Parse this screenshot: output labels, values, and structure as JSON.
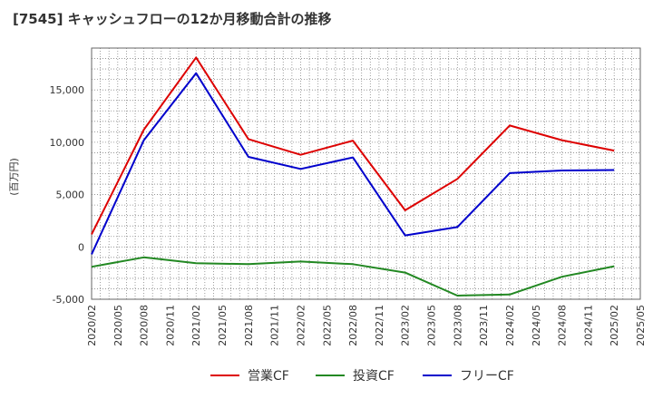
{
  "chart_data": {
    "type": "line",
    "title": "[7545]  キャッシュフローの12か月移動合計の推移",
    "ylabel": "(百万円)",
    "xlabel": "",
    "ylim": [
      -5000,
      19000
    ],
    "yticks": [
      -5000,
      0,
      5000,
      10000,
      15000
    ],
    "ytick_labels": [
      "-5,000",
      "0",
      "5,000",
      "10,000",
      "15,000"
    ],
    "xlim": [
      "2020/02",
      "2025/05"
    ],
    "xtick_labels": [
      "2020/02",
      "2020/05",
      "2020/08",
      "2020/11",
      "2021/02",
      "2021/05",
      "2021/08",
      "2021/11",
      "2022/02",
      "2022/05",
      "2022/08",
      "2022/11",
      "2023/02",
      "2023/05",
      "2023/08",
      "2023/11",
      "2024/02",
      "2024/05",
      "2024/08",
      "2024/11",
      "2025/02",
      "2025/05"
    ],
    "x": [
      "2020/02",
      "2020/08",
      "2021/02",
      "2021/08",
      "2022/02",
      "2022/08",
      "2023/02",
      "2023/08",
      "2024/02",
      "2024/08",
      "2025/02"
    ],
    "series": [
      {
        "name": "営業CF",
        "color": "#dd0000",
        "values": [
          1200,
          11200,
          18100,
          10300,
          8800,
          10150,
          3500,
          6500,
          11600,
          10200,
          9200
        ]
      },
      {
        "name": "投資CF",
        "color": "#228822",
        "values": [
          -1900,
          -1000,
          -1550,
          -1650,
          -1400,
          -1650,
          -2450,
          -4650,
          -4550,
          -2850,
          -1850
        ]
      },
      {
        "name": "フリーCF",
        "color": "#0000cc",
        "values": [
          -700,
          10200,
          16600,
          8600,
          7450,
          8550,
          1100,
          1900,
          7050,
          7300,
          7350
        ]
      }
    ],
    "grid": true,
    "legend": "bottom"
  }
}
